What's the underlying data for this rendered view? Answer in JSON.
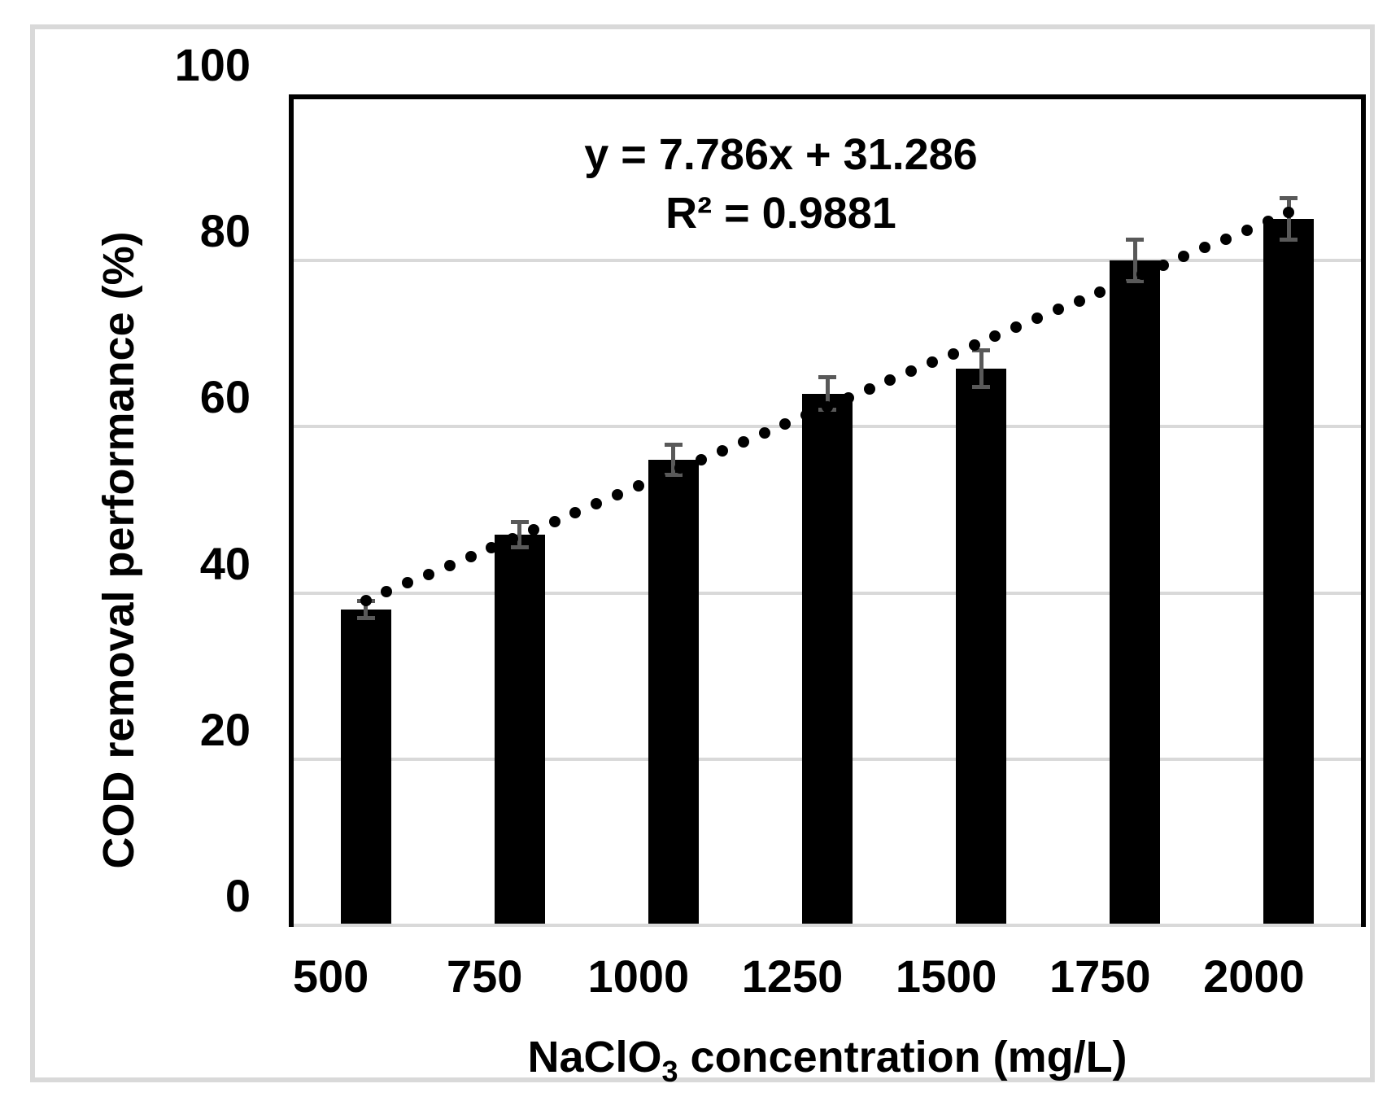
{
  "chart_data": {
    "type": "bar",
    "title": "",
    "categories": [
      "500",
      "750",
      "1000",
      "1250",
      "1500",
      "1750",
      "2000"
    ],
    "values": [
      38,
      47,
      56,
      64,
      67,
      80,
      85
    ],
    "errors": [
      1.0,
      1.5,
      1.8,
      2.0,
      2.2,
      2.5,
      2.5
    ],
    "xlabel": "NaClO3 concentration (mg/L)",
    "xlabel_main": "NaClO",
    "xlabel_sub": "3",
    "xlabel_rest": " concentration (mg/L)",
    "ylabel": "COD removal performance (%)",
    "ylim": [
      0,
      100
    ],
    "yticks": [
      0,
      20,
      40,
      60,
      80,
      100
    ],
    "grid": true,
    "legend_position": "none",
    "colors": {
      "bar": "#000000",
      "error_bar": "#595959",
      "gridline": "#d9d9d9",
      "axis_bottom": "#d9d9d9",
      "axis_box": "#000000",
      "trendline_dot": "#000000",
      "frame": "#d9d9d9"
    },
    "trendline": {
      "type": "linear",
      "style": "dotted",
      "slope": 7.786,
      "intercept": 31.286,
      "equation_label": "y = 7.786x + 31.286",
      "r_squared": 0.9881,
      "r_squared_label": "R² = 0.9881"
    }
  }
}
